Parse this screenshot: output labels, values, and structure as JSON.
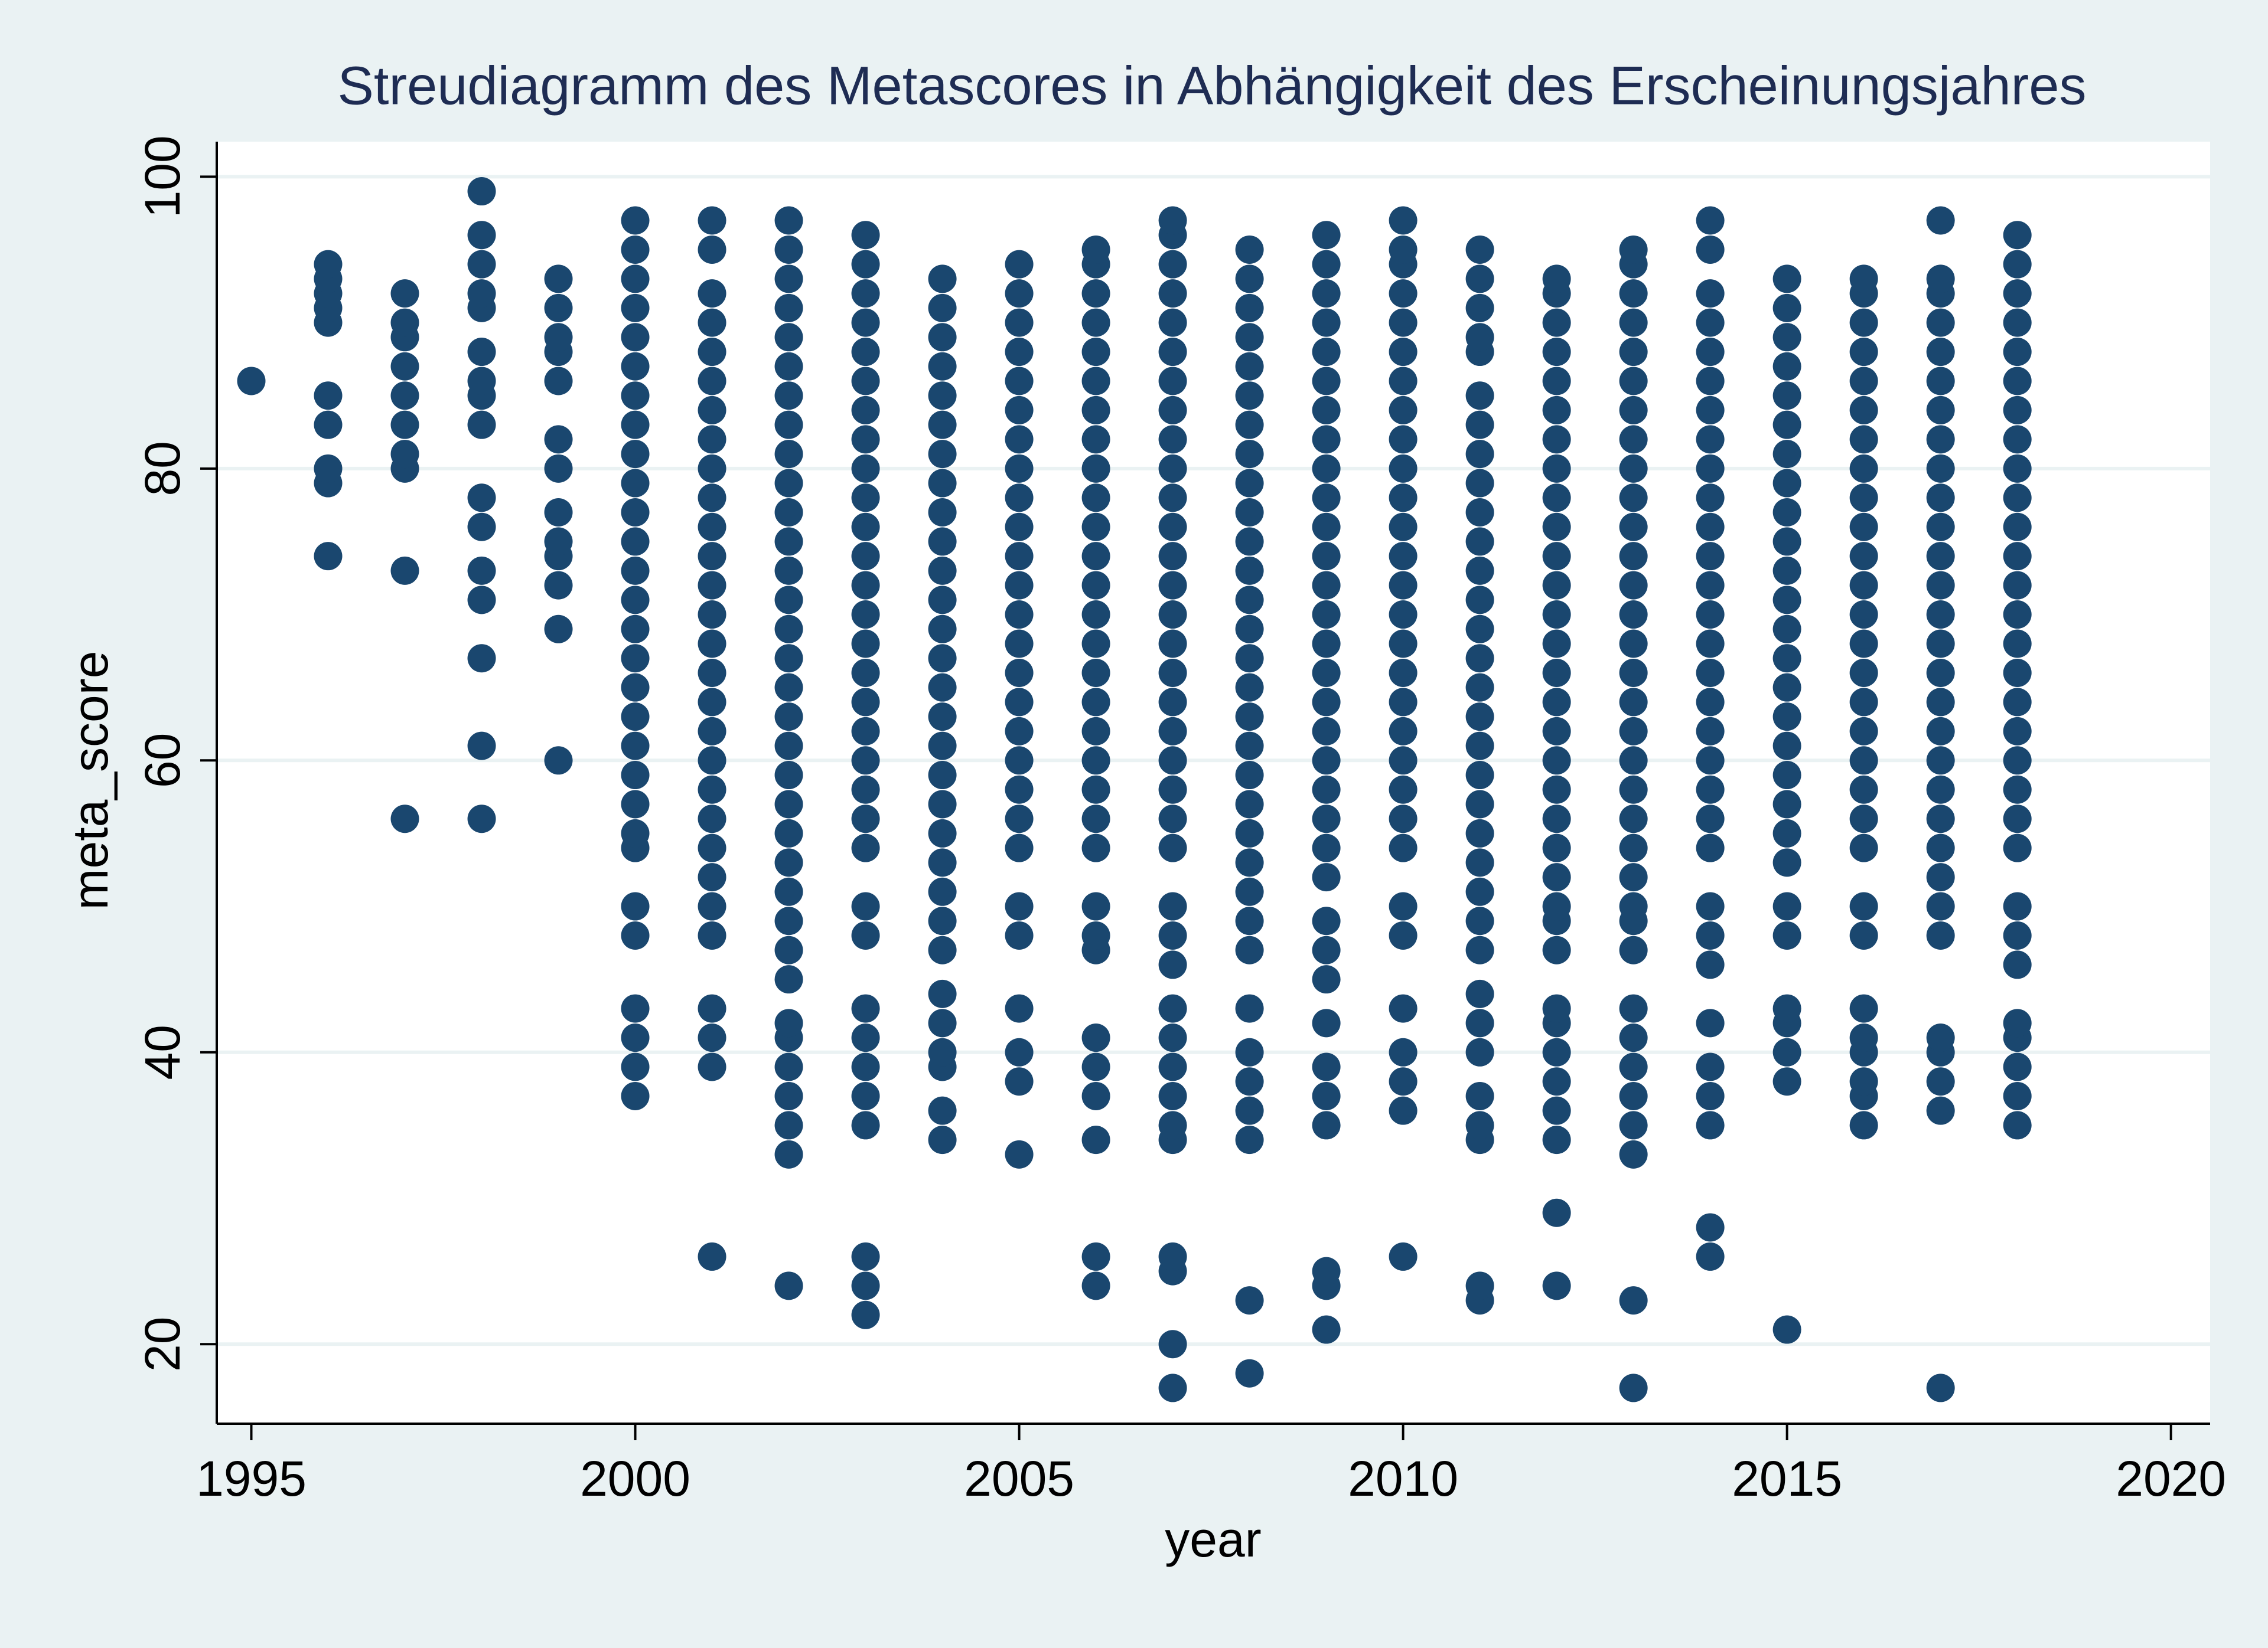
{
  "chart_data": {
    "type": "scatter",
    "title": "Streudiagramm des Metascores in Abhängigkeit des Erscheinungsjahres",
    "x_label": "year",
    "y_label": "meta_score",
    "color": "#1a476f",
    "grid": true,
    "xlim": [
      1994.55,
      2020.51
    ],
    "ylim": [
      14.55,
      102.4
    ],
    "xticks": [
      1995,
      2000,
      2005,
      2010,
      2015,
      2020
    ],
    "yticks": [
      20,
      40,
      60,
      80,
      100
    ],
    "x": [
      1995,
      1996,
      1996,
      1996,
      1996,
      1996,
      1996,
      1996,
      1996,
      1996,
      1996,
      1997,
      1997,
      1997,
      1997,
      1997,
      1997,
      1997,
      1997,
      1997,
      1997,
      1998,
      1998,
      1998,
      1998,
      1998,
      1998,
      1998,
      1998,
      1998,
      1998,
      1998,
      1998,
      1998,
      1998,
      1998,
      1998,
      1999,
      1999,
      1999,
      1999,
      1999,
      1999,
      1999,
      1999,
      1999,
      1999,
      1999,
      1999,
      1999,
      2000,
      2000,
      2000,
      2000,
      2000,
      2000,
      2000,
      2000,
      2000,
      2000,
      2000,
      2000,
      2000,
      2000,
      2000,
      2000,
      2000,
      2000,
      2000,
      2000,
      2000,
      2000,
      2000,
      2000,
      2000,
      2000,
      2000,
      2000,
      2000,
      2001,
      2001,
      2001,
      2001,
      2001,
      2001,
      2001,
      2001,
      2001,
      2001,
      2001,
      2001,
      2001,
      2001,
      2001,
      2001,
      2001,
      2001,
      2001,
      2001,
      2001,
      2001,
      2001,
      2001,
      2001,
      2001,
      2001,
      2001,
      2001,
      2002,
      2002,
      2002,
      2002,
      2002,
      2002,
      2002,
      2002,
      2002,
      2002,
      2002,
      2002,
      2002,
      2002,
      2002,
      2002,
      2002,
      2002,
      2002,
      2002,
      2002,
      2002,
      2002,
      2002,
      2002,
      2002,
      2002,
      2002,
      2002,
      2002,
      2002,
      2002,
      2002,
      2002,
      2003,
      2003,
      2003,
      2003,
      2003,
      2003,
      2003,
      2003,
      2003,
      2003,
      2003,
      2003,
      2003,
      2003,
      2003,
      2003,
      2003,
      2003,
      2003,
      2003,
      2003,
      2003,
      2003,
      2003,
      2003,
      2003,
      2003,
      2003,
      2003,
      2003,
      2003,
      2003,
      2004,
      2004,
      2004,
      2004,
      2004,
      2004,
      2004,
      2004,
      2004,
      2004,
      2004,
      2004,
      2004,
      2004,
      2004,
      2004,
      2004,
      2004,
      2004,
      2004,
      2004,
      2004,
      2004,
      2004,
      2004,
      2004,
      2004,
      2004,
      2004,
      2004,
      2005,
      2005,
      2005,
      2005,
      2005,
      2005,
      2005,
      2005,
      2005,
      2005,
      2005,
      2005,
      2005,
      2005,
      2005,
      2005,
      2005,
      2005,
      2005,
      2005,
      2005,
      2005,
      2005,
      2005,
      2005,
      2005,
      2005,
      2006,
      2006,
      2006,
      2006,
      2006,
      2006,
      2006,
      2006,
      2006,
      2006,
      2006,
      2006,
      2006,
      2006,
      2006,
      2006,
      2006,
      2006,
      2006,
      2006,
      2006,
      2006,
      2006,
      2006,
      2006,
      2006,
      2006,
      2006,
      2006,
      2006,
      2006,
      2007,
      2007,
      2007,
      2007,
      2007,
      2007,
      2007,
      2007,
      2007,
      2007,
      2007,
      2007,
      2007,
      2007,
      2007,
      2007,
      2007,
      2007,
      2007,
      2007,
      2007,
      2007,
      2007,
      2007,
      2007,
      2007,
      2007,
      2007,
      2007,
      2007,
      2007,
      2007,
      2007,
      2007,
      2007,
      2007,
      2008,
      2008,
      2008,
      2008,
      2008,
      2008,
      2008,
      2008,
      2008,
      2008,
      2008,
      2008,
      2008,
      2008,
      2008,
      2008,
      2008,
      2008,
      2008,
      2008,
      2008,
      2008,
      2008,
      2008,
      2008,
      2008,
      2008,
      2008,
      2008,
      2008,
      2008,
      2008,
      2009,
      2009,
      2009,
      2009,
      2009,
      2009,
      2009,
      2009,
      2009,
      2009,
      2009,
      2009,
      2009,
      2009,
      2009,
      2009,
      2009,
      2009,
      2009,
      2009,
      2009,
      2009,
      2009,
      2009,
      2009,
      2009,
      2009,
      2009,
      2009,
      2009,
      2009,
      2009,
      2009,
      2010,
      2010,
      2010,
      2010,
      2010,
      2010,
      2010,
      2010,
      2010,
      2010,
      2010,
      2010,
      2010,
      2010,
      2010,
      2010,
      2010,
      2010,
      2010,
      2010,
      2010,
      2010,
      2010,
      2010,
      2010,
      2010,
      2010,
      2010,
      2010,
      2010,
      2011,
      2011,
      2011,
      2011,
      2011,
      2011,
      2011,
      2011,
      2011,
      2011,
      2011,
      2011,
      2011,
      2011,
      2011,
      2011,
      2011,
      2011,
      2011,
      2011,
      2011,
      2011,
      2011,
      2011,
      2011,
      2011,
      2011,
      2011,
      2011,
      2011,
      2011,
      2011,
      2011,
      2012,
      2012,
      2012,
      2012,
      2012,
      2012,
      2012,
      2012,
      2012,
      2012,
      2012,
      2012,
      2012,
      2012,
      2012,
      2012,
      2012,
      2012,
      2012,
      2012,
      2012,
      2012,
      2012,
      2012,
      2012,
      2012,
      2012,
      2012,
      2012,
      2012,
      2012,
      2012,
      2012,
      2013,
      2013,
      2013,
      2013,
      2013,
      2013,
      2013,
      2013,
      2013,
      2013,
      2013,
      2013,
      2013,
      2013,
      2013,
      2013,
      2013,
      2013,
      2013,
      2013,
      2013,
      2013,
      2013,
      2013,
      2013,
      2013,
      2013,
      2013,
      2013,
      2013,
      2013,
      2013,
      2013,
      2013,
      2014,
      2014,
      2014,
      2014,
      2014,
      2014,
      2014,
      2014,
      2014,
      2014,
      2014,
      2014,
      2014,
      2014,
      2014,
      2014,
      2014,
      2014,
      2014,
      2014,
      2014,
      2014,
      2014,
      2014,
      2014,
      2014,
      2014,
      2014,
      2014,
      2014,
      2014,
      2015,
      2015,
      2015,
      2015,
      2015,
      2015,
      2015,
      2015,
      2015,
      2015,
      2015,
      2015,
      2015,
      2015,
      2015,
      2015,
      2015,
      2015,
      2015,
      2015,
      2015,
      2015,
      2015,
      2015,
      2015,
      2015,
      2015,
      2015,
      2016,
      2016,
      2016,
      2016,
      2016,
      2016,
      2016,
      2016,
      2016,
      2016,
      2016,
      2016,
      2016,
      2016,
      2016,
      2016,
      2016,
      2016,
      2016,
      2016,
      2016,
      2016,
      2016,
      2016,
      2016,
      2016,
      2016,
      2016,
      2016,
      2017,
      2017,
      2017,
      2017,
      2017,
      2017,
      2017,
      2017,
      2017,
      2017,
      2017,
      2017,
      2017,
      2017,
      2017,
      2017,
      2017,
      2017,
      2017,
      2017,
      2017,
      2017,
      2017,
      2017,
      2017,
      2017,
      2017,
      2017,
      2017,
      2017,
      2018,
      2018,
      2018,
      2018,
      2018,
      2018,
      2018,
      2018,
      2018,
      2018,
      2018,
      2018,
      2018,
      2018,
      2018,
      2018,
      2018,
      2018,
      2018,
      2018,
      2018,
      2018,
      2018,
      2018,
      2018,
      2018,
      2018,
      2018,
      2018,
      2018
    ],
    "values": [
      86,
      74,
      79,
      80,
      83,
      85,
      90,
      91,
      92,
      93,
      94,
      56,
      73,
      80,
      81,
      83,
      85,
      87,
      89,
      90,
      92,
      56,
      61,
      67,
      71,
      73,
      76,
      78,
      83,
      85,
      86,
      88,
      91,
      92,
      94,
      96,
      99,
      60,
      69,
      72,
      74,
      75,
      77,
      80,
      82,
      86,
      88,
      89,
      91,
      93,
      37,
      39,
      41,
      43,
      48,
      50,
      54,
      55,
      57,
      59,
      61,
      63,
      65,
      67,
      69,
      71,
      73,
      75,
      77,
      79,
      81,
      83,
      85,
      87,
      89,
      91,
      93,
      95,
      97,
      26,
      39,
      41,
      43,
      48,
      50,
      52,
      54,
      56,
      58,
      60,
      62,
      64,
      66,
      68,
      70,
      72,
      74,
      76,
      78,
      80,
      82,
      84,
      86,
      88,
      90,
      92,
      95,
      97,
      24,
      33,
      35,
      37,
      39,
      41,
      42,
      45,
      47,
      49,
      51,
      53,
      55,
      57,
      59,
      61,
      63,
      65,
      67,
      69,
      71,
      73,
      75,
      77,
      79,
      81,
      83,
      85,
      87,
      89,
      91,
      93,
      95,
      97,
      22,
      24,
      26,
      35,
      37,
      39,
      41,
      43,
      48,
      50,
      54,
      56,
      58,
      60,
      62,
      64,
      66,
      68,
      70,
      72,
      74,
      76,
      78,
      80,
      82,
      84,
      86,
      88,
      90,
      92,
      94,
      96,
      34,
      36,
      39,
      40,
      42,
      44,
      47,
      49,
      51,
      53,
      55,
      57,
      59,
      61,
      63,
      65,
      67,
      69,
      71,
      73,
      75,
      77,
      79,
      81,
      83,
      85,
      87,
      89,
      91,
      93,
      33,
      38,
      40,
      43,
      48,
      50,
      54,
      56,
      58,
      60,
      62,
      64,
      66,
      68,
      70,
      72,
      74,
      76,
      78,
      80,
      82,
      84,
      86,
      88,
      90,
      92,
      94,
      24,
      26,
      34,
      37,
      39,
      41,
      47,
      48,
      50,
      54,
      56,
      58,
      60,
      62,
      64,
      66,
      68,
      70,
      72,
      74,
      76,
      78,
      80,
      82,
      84,
      86,
      88,
      90,
      92,
      94,
      95,
      17,
      20,
      25,
      26,
      34,
      35,
      37,
      39,
      41,
      43,
      46,
      48,
      50,
      54,
      56,
      58,
      60,
      62,
      64,
      66,
      68,
      70,
      72,
      74,
      76,
      78,
      80,
      82,
      84,
      86,
      88,
      90,
      92,
      94,
      96,
      97,
      18,
      23,
      34,
      36,
      38,
      40,
      43,
      47,
      49,
      51,
      53,
      55,
      57,
      59,
      61,
      63,
      65,
      67,
      69,
      71,
      73,
      75,
      77,
      79,
      81,
      83,
      85,
      87,
      89,
      91,
      93,
      95,
      21,
      24,
      25,
      35,
      37,
      39,
      42,
      45,
      47,
      49,
      52,
      54,
      56,
      58,
      60,
      62,
      64,
      66,
      68,
      70,
      72,
      74,
      76,
      78,
      80,
      82,
      84,
      86,
      88,
      90,
      92,
      94,
      96,
      26,
      36,
      38,
      40,
      43,
      48,
      50,
      54,
      56,
      58,
      60,
      62,
      64,
      66,
      68,
      70,
      72,
      74,
      76,
      78,
      80,
      82,
      84,
      86,
      88,
      90,
      92,
      94,
      95,
      97,
      23,
      24,
      34,
      35,
      37,
      40,
      42,
      44,
      47,
      49,
      51,
      53,
      55,
      57,
      59,
      61,
      63,
      65,
      67,
      69,
      71,
      73,
      75,
      77,
      79,
      81,
      83,
      85,
      88,
      89,
      91,
      93,
      95,
      24,
      29,
      34,
      36,
      38,
      40,
      42,
      43,
      47,
      49,
      50,
      52,
      54,
      56,
      58,
      60,
      62,
      64,
      66,
      68,
      70,
      72,
      74,
      76,
      78,
      80,
      82,
      84,
      86,
      88,
      90,
      92,
      93,
      17,
      23,
      33,
      35,
      37,
      39,
      41,
      43,
      47,
      49,
      50,
      52,
      54,
      56,
      58,
      60,
      62,
      64,
      66,
      68,
      70,
      72,
      74,
      76,
      78,
      80,
      82,
      84,
      86,
      88,
      90,
      92,
      94,
      95,
      26,
      28,
      35,
      37,
      39,
      42,
      46,
      48,
      50,
      54,
      56,
      58,
      60,
      62,
      64,
      66,
      68,
      70,
      72,
      74,
      76,
      78,
      80,
      82,
      84,
      86,
      88,
      90,
      92,
      95,
      97,
      21,
      38,
      40,
      42,
      43,
      48,
      50,
      53,
      55,
      57,
      59,
      61,
      63,
      65,
      67,
      69,
      71,
      73,
      75,
      77,
      79,
      81,
      83,
      85,
      87,
      89,
      91,
      93,
      35,
      37,
      38,
      40,
      41,
      43,
      48,
      50,
      54,
      56,
      58,
      60,
      62,
      64,
      66,
      68,
      70,
      72,
      74,
      76,
      78,
      80,
      82,
      84,
      86,
      88,
      90,
      92,
      93,
      17,
      36,
      38,
      40,
      41,
      48,
      50,
      52,
      54,
      56,
      58,
      60,
      62,
      64,
      66,
      68,
      70,
      72,
      74,
      76,
      78,
      80,
      82,
      84,
      86,
      88,
      90,
      92,
      93,
      97,
      35,
      37,
      39,
      41,
      42,
      46,
      48,
      50,
      54,
      56,
      58,
      60,
      62,
      64,
      66,
      68,
      70,
      72,
      74,
      76,
      78,
      80,
      82,
      84,
      86,
      88,
      90,
      92,
      94,
      96
    ]
  }
}
